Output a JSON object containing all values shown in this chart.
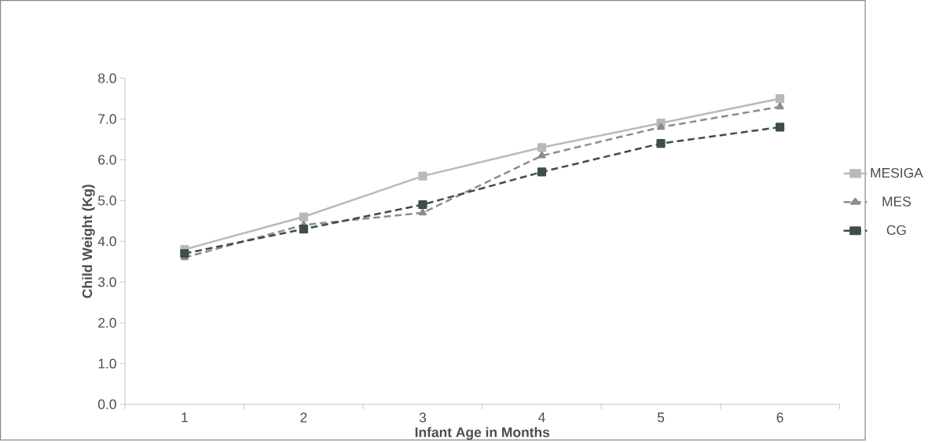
{
  "chart_data": {
    "type": "line",
    "xlabel": "Infant Age in Months",
    "ylabel": "Child Weight (Kg)",
    "categories": [
      "1",
      "2",
      "3",
      "4",
      "5",
      "6"
    ],
    "series": [
      {
        "name": "MESIGA",
        "color": "#b9b9b9",
        "marker": "square",
        "line_style": "solid",
        "values": [
          3.8,
          4.6,
          5.6,
          6.3,
          6.9,
          7.5
        ]
      },
      {
        "name": "MES",
        "color": "#8a8e8e",
        "marker": "triangle",
        "line_style": "dashed",
        "values": [
          3.6,
          4.4,
          4.7,
          6.1,
          6.8,
          7.3
        ]
      },
      {
        "name": "CG",
        "color": "#3e4d4d",
        "marker": "square",
        "line_style": "dashed",
        "values": [
          3.7,
          4.3,
          4.9,
          5.7,
          6.4,
          6.8
        ]
      }
    ],
    "ylim": [
      0,
      8
    ],
    "yticks": [
      {
        "value": 0,
        "label": "0.0"
      },
      {
        "value": 1,
        "label": "1.0"
      },
      {
        "value": 2,
        "label": "2.0"
      },
      {
        "value": 3,
        "label": "3.0"
      },
      {
        "value": 4,
        "label": "4.0"
      },
      {
        "value": 5,
        "label": "5.0"
      },
      {
        "value": 6,
        "label": "6.0"
      },
      {
        "value": 7,
        "label": "7.0"
      },
      {
        "value": 8,
        "label": "8.0"
      }
    ],
    "grid": false,
    "legend": "right"
  }
}
